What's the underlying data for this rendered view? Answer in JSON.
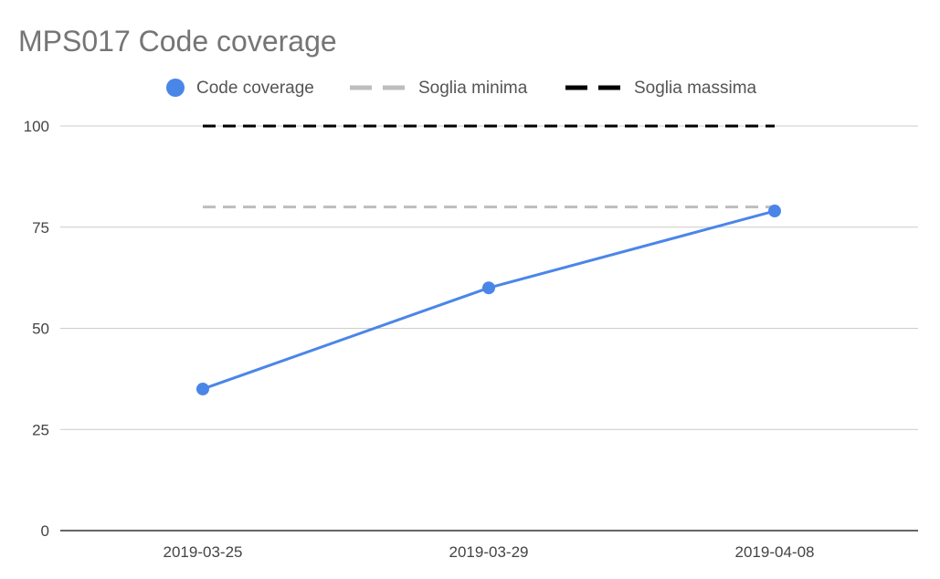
{
  "chart_data": {
    "type": "line",
    "title": "MPS017 Code coverage",
    "xlabel": "",
    "ylabel": "",
    "categories": [
      "2019-03-25",
      "2019-03-29",
      "2019-04-08"
    ],
    "ylim": [
      0,
      100
    ],
    "yticks": [
      0,
      25,
      50,
      75,
      100
    ],
    "grid": true,
    "legend_position": "top",
    "series": [
      {
        "name": "Code coverage",
        "values": [
          35,
          60,
          79
        ],
        "color": "#4a86e8",
        "style": "solid-with-markers"
      },
      {
        "name": "Soglia minima",
        "values": [
          80,
          80,
          80
        ],
        "color": "#bdbdbd",
        "style": "dashed"
      },
      {
        "name": "Soglia massima",
        "values": [
          100,
          100,
          100
        ],
        "color": "#000000",
        "style": "dashed"
      }
    ]
  }
}
